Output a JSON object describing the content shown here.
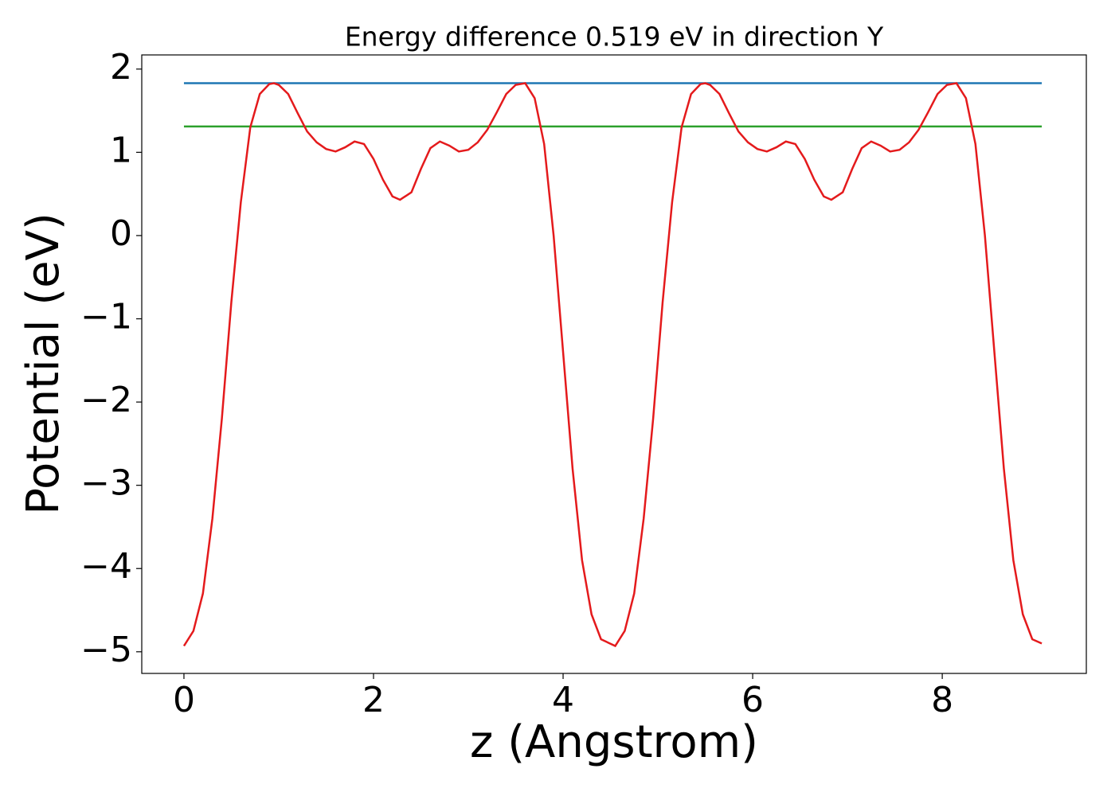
{
  "chart_data": {
    "type": "line",
    "title": "Energy difference 0.519 eV in direction Y",
    "x_label": "z (Angstrom)",
    "y_label": "Potential (eV)",
    "xlim": [
      -0.445,
      9.52
    ],
    "ylim": [
      -5.26,
      2.17
    ],
    "xticks": [
      0,
      2,
      4,
      6,
      8
    ],
    "yticks": [
      {
        "value": -5,
        "label": "−5"
      },
      {
        "value": -4,
        "label": "−4"
      },
      {
        "value": -3,
        "label": "−3"
      },
      {
        "value": -2,
        "label": "−2"
      },
      {
        "value": -1,
        "label": "−1"
      },
      0,
      1,
      2
    ],
    "grid": false,
    "series": [
      {
        "color": "#1f77b4",
        "x": [
          0,
          9.05
        ],
        "values": [
          1.83,
          1.83
        ]
      },
      {
        "color": "#2ca02c",
        "x": [
          0,
          9.05
        ],
        "values": [
          1.311,
          1.311
        ]
      },
      {
        "color": "#e41a1c",
        "x": [
          0,
          0.1,
          0.2,
          0.3,
          0.4,
          0.5,
          0.6,
          0.7,
          0.8,
          0.9,
          0.95,
          1.0,
          1.1,
          1.2,
          1.3,
          1.4,
          1.5,
          1.6,
          1.7,
          1.8,
          1.9,
          2.0,
          2.1,
          2.2,
          2.28,
          2.4,
          2.5,
          2.6,
          2.7,
          2.8,
          2.9,
          3.0,
          3.1,
          3.2,
          3.3,
          3.4,
          3.5,
          3.6,
          3.7,
          3.8,
          3.9,
          4.0,
          4.1,
          4.2,
          4.3,
          4.4,
          4.55,
          4.65,
          4.75,
          4.85,
          4.95,
          5.05,
          5.15,
          5.25,
          5.35,
          5.45,
          5.5,
          5.55,
          5.65,
          5.75,
          5.85,
          5.95,
          6.05,
          6.15,
          6.25,
          6.35,
          6.45,
          6.55,
          6.65,
          6.75,
          6.83,
          6.95,
          7.05,
          7.15,
          7.25,
          7.35,
          7.45,
          7.55,
          7.65,
          7.75,
          7.85,
          7.95,
          8.05,
          8.15,
          8.25,
          8.35,
          8.45,
          8.55,
          8.65,
          8.75,
          8.85,
          8.95,
          9.05
        ],
        "values": [
          -4.93,
          -4.75,
          -4.3,
          -3.4,
          -2.2,
          -0.8,
          0.4,
          1.3,
          1.7,
          1.82,
          1.83,
          1.81,
          1.7,
          1.47,
          1.25,
          1.12,
          1.04,
          1.01,
          1.06,
          1.13,
          1.1,
          0.92,
          0.67,
          0.47,
          0.43,
          0.52,
          0.8,
          1.05,
          1.13,
          1.08,
          1.01,
          1.03,
          1.12,
          1.27,
          1.48,
          1.7,
          1.81,
          1.83,
          1.65,
          1.1,
          0.0,
          -1.4,
          -2.8,
          -3.9,
          -4.55,
          -4.85,
          -4.93,
          -4.75,
          -4.3,
          -3.4,
          -2.2,
          -0.8,
          0.4,
          1.3,
          1.7,
          1.82,
          1.83,
          1.81,
          1.7,
          1.47,
          1.25,
          1.12,
          1.04,
          1.01,
          1.06,
          1.13,
          1.1,
          0.92,
          0.67,
          0.47,
          0.43,
          0.52,
          0.8,
          1.05,
          1.13,
          1.08,
          1.01,
          1.03,
          1.12,
          1.27,
          1.48,
          1.7,
          1.81,
          1.83,
          1.65,
          1.1,
          0.0,
          -1.4,
          -2.8,
          -3.9,
          -4.55,
          -4.85,
          -4.9
        ]
      }
    ]
  }
}
